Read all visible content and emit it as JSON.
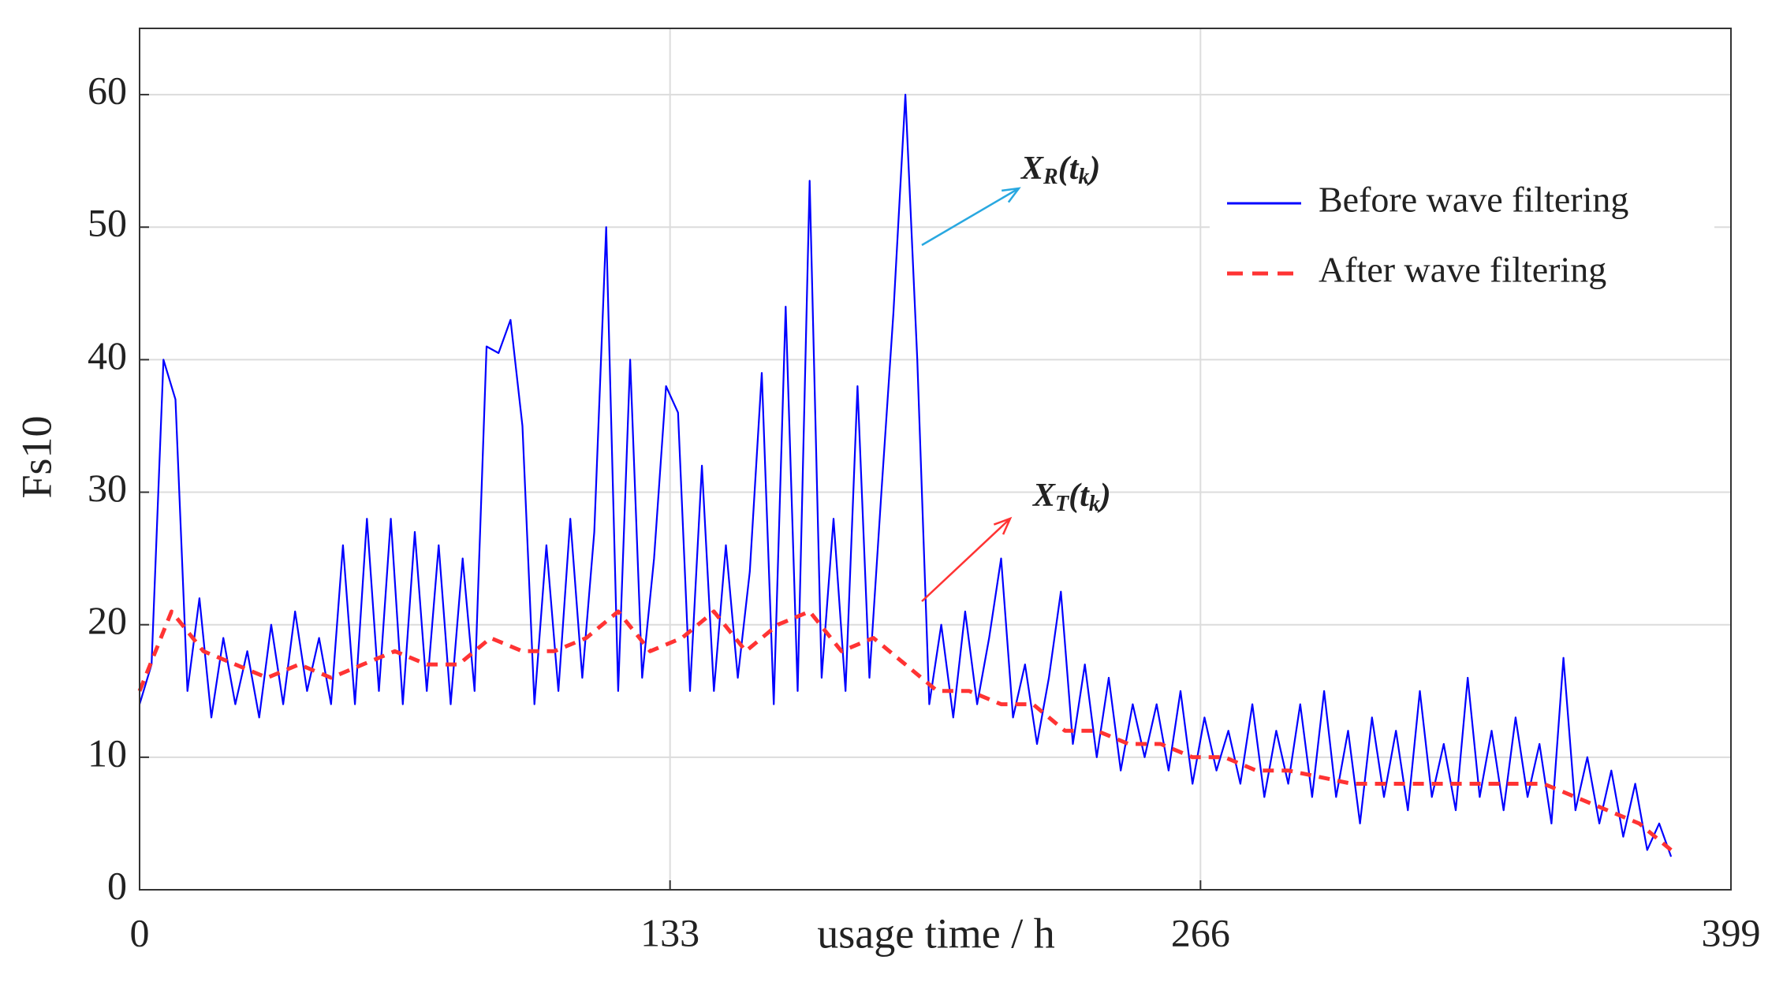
{
  "chart_data": {
    "type": "line",
    "x_label": "usage time / h",
    "y_label": "Fs10",
    "xlim": [
      0,
      399
    ],
    "xticks": [
      0,
      133,
      266,
      399
    ],
    "ylim": [
      0,
      65
    ],
    "yticks": [
      0,
      10,
      20,
      30,
      40,
      50,
      60
    ],
    "grid": true,
    "legend": "upper right",
    "series": [
      {
        "name": "Before wave filtering",
        "color": "#0000ff",
        "style": "solid",
        "x": [
          0,
          3,
          6,
          9,
          12,
          15,
          18,
          21,
          24,
          27,
          30,
          33,
          36,
          39,
          42,
          45,
          48,
          51,
          54,
          57,
          60,
          63,
          66,
          69,
          72,
          75,
          78,
          81,
          84,
          87,
          90,
          93,
          96,
          99,
          102,
          105,
          108,
          111,
          114,
          117,
          120,
          123,
          126,
          129,
          132,
          135,
          138,
          141,
          144,
          147,
          150,
          153,
          156,
          159,
          162,
          165,
          168,
          171,
          174,
          177,
          180,
          183,
          186,
          189,
          192,
          195,
          198,
          201,
          204,
          207,
          210,
          213,
          216,
          219,
          222,
          225,
          228,
          231,
          234,
          237,
          240,
          243,
          246,
          249,
          252,
          255,
          258,
          261,
          264,
          267,
          270,
          273,
          276,
          279,
          282,
          285,
          288,
          291,
          294,
          297,
          300,
          303,
          306,
          309,
          312,
          315,
          318,
          321,
          324,
          327,
          330,
          333,
          336,
          339,
          342,
          345,
          348,
          351,
          354,
          357,
          360,
          363,
          366,
          369,
          372,
          375,
          378,
          381,
          384
        ],
        "values": [
          14,
          17,
          40,
          37,
          15,
          22,
          13,
          19,
          14,
          18,
          13,
          20,
          14,
          21,
          15,
          19,
          14,
          26,
          14,
          28,
          15,
          28,
          14,
          27,
          15,
          26,
          14,
          25,
          15,
          41,
          40.5,
          43,
          35,
          14,
          26,
          15,
          28,
          16,
          27,
          50,
          15,
          40,
          16,
          25,
          38,
          36,
          15,
          32,
          15,
          26,
          16,
          24,
          39,
          14,
          44,
          15,
          53.5,
          16,
          28,
          15,
          38,
          16,
          30,
          43.5,
          60,
          40,
          14,
          20,
          13,
          21,
          14,
          19,
          25,
          13,
          17,
          11,
          16,
          22.5,
          11,
          17,
          10,
          16,
          9,
          14,
          10,
          14,
          9,
          15,
          8,
          13,
          9,
          12,
          8,
          14,
          7,
          12,
          8,
          14,
          7,
          15,
          7,
          12,
          5,
          13,
          7,
          12,
          6,
          15,
          7,
          11,
          6,
          16,
          7,
          12,
          6,
          13,
          7,
          11,
          5,
          17.5,
          6,
          10,
          5,
          9,
          4,
          8,
          3,
          5,
          2.5
        ]
      },
      {
        "name": "After wave filtering",
        "color": "#ff3333",
        "style": "dashed",
        "x": [
          0,
          8,
          16,
          24,
          32,
          40,
          48,
          56,
          64,
          72,
          80,
          88,
          96,
          104,
          112,
          120,
          128,
          136,
          144,
          152,
          160,
          168,
          176,
          184,
          192,
          200,
          208,
          216,
          224,
          232,
          240,
          248,
          256,
          264,
          272,
          280,
          288,
          296,
          304,
          312,
          320,
          328,
          336,
          344,
          352,
          360,
          368,
          376,
          384
        ],
        "values": [
          15,
          21,
          18,
          17,
          16,
          17,
          16,
          17,
          18,
          17,
          17,
          19,
          18,
          18,
          19,
          21,
          18,
          19,
          21,
          18,
          20,
          21,
          18,
          19,
          17,
          15,
          15,
          14,
          14,
          12,
          12,
          11,
          11,
          10,
          10,
          9,
          9,
          8.5,
          8,
          8,
          8,
          8,
          8,
          8,
          8,
          7,
          6,
          5,
          3
        ]
      }
    ],
    "annotations": [
      {
        "parts": [
          "X",
          "R",
          "(t",
          "k",
          ")"
        ],
        "color": "#29a8e0"
      },
      {
        "parts": [
          "X",
          "T",
          "(t",
          "k",
          ")"
        ],
        "color": "#ff3333"
      }
    ]
  }
}
